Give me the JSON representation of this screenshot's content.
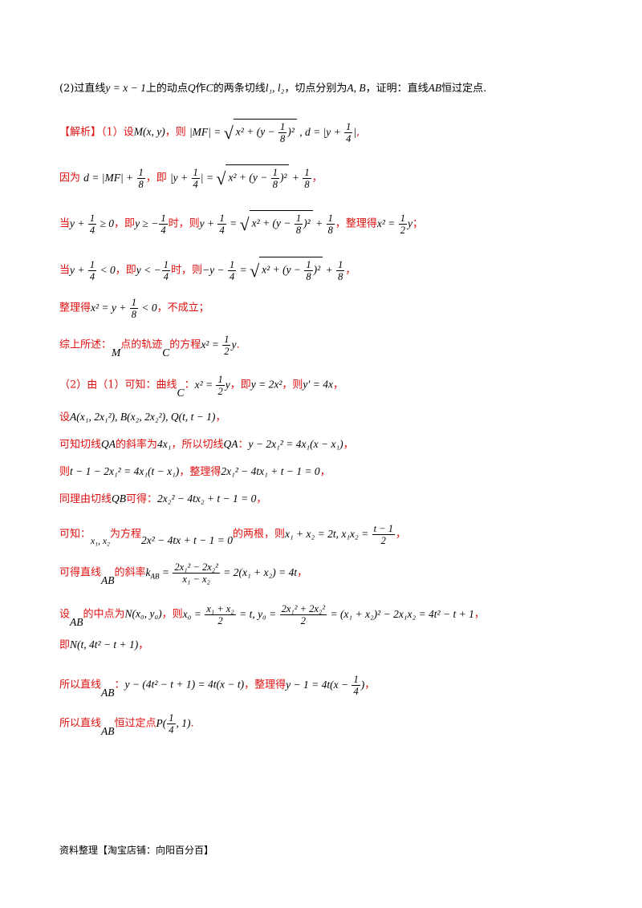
{
  "problem": {
    "part2_prefix": "(2)过直线",
    "line_eq": "y = x − 1",
    "part2_mid1": "上的动点",
    "Q": "Q",
    "part2_mid2": "作",
    "C": "C",
    "part2_mid3": "的两条切线",
    "tangents": "l₁, l₂",
    "part2_mid4": "，切点分别为",
    "AB_pts": "A, B",
    "part2_mid5": "，证明：直线",
    "AB": "AB",
    "part2_end": "恒过定点."
  },
  "solution": {
    "tag": "【解析】",
    "l1_a": "（1）设",
    "l1_M": "M(x, y)",
    "l1_b": "，则",
    "l1_c": ",",
    "l2_a": "因为",
    "l2_b": "，即",
    "l2_c": "，",
    "l3_a": "当",
    "l3_b": "，即",
    "l3_c": "时，则",
    "l3_d": "，整理得",
    "l3_e": "；",
    "l4_a": "当",
    "l4_b": "，即",
    "l4_c": "时，则",
    "l4_d": "，",
    "l5_a": "整理得",
    "l5_b": "，不成立；",
    "l6_a": "综上所述：",
    "l6_M": "M",
    "l6_b": "点的轨迹",
    "l6_C": "C",
    "l6_c": "的方程",
    "l6_d": ".",
    "l7_a": "（2）由（1）可知：曲线",
    "l7_C": "C",
    "l7_b": "：",
    "l7_c": "，即",
    "l7_d": "，则",
    "l7_e": "，",
    "l8_a": "设",
    "l8_b": "，",
    "l9_a": "可知切线",
    "l9_QA": "QA",
    "l9_b": "的斜率为",
    "l9_slope": "4x₁",
    "l9_c": "，所以切线",
    "l9_d": "：",
    "l9_e": "，",
    "l10_a": "则",
    "l10_b": "，整理得",
    "l10_c": "，",
    "l11_a": "同理由切线",
    "l11_QB": "QB",
    "l11_b": "可得：",
    "l11_c": "，",
    "l12_a": "可知：",
    "l12_x": "x₁, x₂",
    "l12_b": "为方程",
    "l12_c": "的两根，则",
    "l12_d": "，",
    "l13_a": "可得直线",
    "l13_AB": "AB",
    "l13_b": "的斜率",
    "l13_c": "，",
    "l14_a": "设",
    "l14_AB": "AB",
    "l14_b": "的中点为",
    "l14_c": "，则",
    "l14_d": "，",
    "l15_a": "即",
    "l15_b": "，",
    "l16_a": "所以直线",
    "l16_AB": "AB",
    "l16_b": "：",
    "l16_c": "，整理得",
    "l16_d": "，",
    "l17_a": "所以直线",
    "l17_AB": "AB",
    "l17_b": "恒过定点",
    "l17_c": "."
  },
  "footer": "资料整理【淘宝店铺：向阳百分百】"
}
